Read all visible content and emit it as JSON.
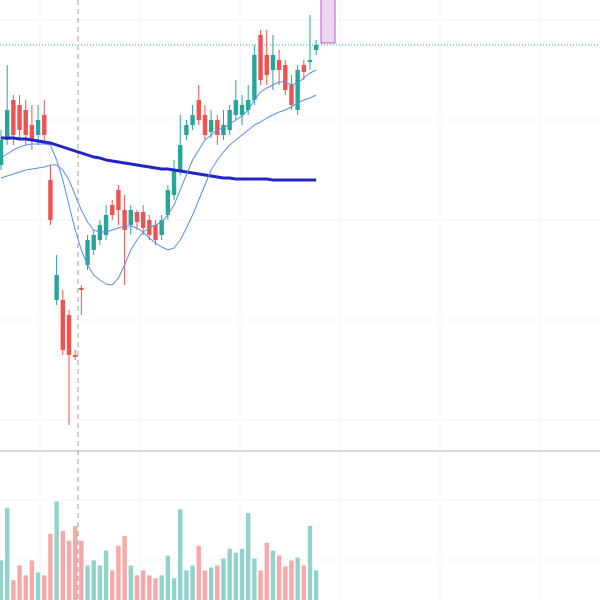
{
  "chart_data": {
    "type": "candlestick",
    "up_color": "#26a69a",
    "down_color": "#ef5350",
    "volume_up_color": "#92d2cc",
    "volume_down_color": "#f7a9a7",
    "ylim": [
      0,
      450
    ],
    "open": [
      285,
      310,
      350,
      345,
      340,
      325,
      315,
      335,
      270,
      150,
      150,
      135,
      95,
      162,
      185,
      200,
      210,
      215,
      245,
      260,
      240,
      225,
      238,
      238,
      230,
      225,
      215,
      235,
      255,
      280,
      315,
      325,
      350,
      335,
      318,
      330,
      315,
      320,
      335,
      335,
      340,
      350,
      415,
      395,
      380,
      390,
      385,
      365,
      340,
      385,
      388,
      400
    ],
    "high": [
      320,
      385,
      355,
      355,
      350,
      345,
      345,
      350,
      285,
      195,
      160,
      140,
      100,
      165,
      215,
      220,
      230,
      245,
      250,
      265,
      255,
      245,
      240,
      245,
      235,
      230,
      235,
      265,
      290,
      335,
      330,
      345,
      365,
      345,
      340,
      335,
      340,
      345,
      370,
      355,
      365,
      405,
      420,
      420,
      415,
      400,
      390,
      375,
      385,
      390,
      435,
      410
    ],
    "low": [
      280,
      305,
      305,
      310,
      305,
      300,
      305,
      310,
      225,
      145,
      95,
      25,
      90,
      135,
      180,
      195,
      205,
      210,
      230,
      225,
      165,
      215,
      220,
      215,
      210,
      205,
      210,
      230,
      250,
      275,
      310,
      320,
      325,
      310,
      312,
      305,
      310,
      315,
      330,
      325,
      335,
      345,
      365,
      365,
      360,
      365,
      355,
      340,
      335,
      370,
      380,
      395
    ],
    "close": [
      310,
      340,
      315,
      320,
      315,
      310,
      330,
      315,
      230,
      175,
      100,
      95,
      93,
      160,
      210,
      215,
      225,
      235,
      235,
      240,
      220,
      240,
      228,
      222,
      215,
      210,
      230,
      260,
      280,
      305,
      325,
      335,
      330,
      315,
      330,
      315,
      325,
      340,
      350,
      345,
      350,
      395,
      370,
      375,
      395,
      380,
      360,
      345,
      380,
      378,
      390,
      405
    ],
    "moving_averages": [
      {
        "color": "#2323c8",
        "width": 3,
        "values": [
          312,
          312,
          312,
          311,
          311,
          310,
          309,
          308,
          307,
          305,
          303,
          301,
          299,
          297,
          295,
          293,
          292,
          290,
          289,
          288,
          287,
          286,
          285,
          284,
          283,
          282,
          281,
          281,
          280,
          279,
          278,
          277,
          276,
          275,
          274,
          273,
          272,
          272,
          271,
          271,
          271,
          271,
          271,
          271,
          270,
          270,
          270,
          270,
          270,
          270,
          270,
          270
        ]
      },
      {
        "color": "#5b8ee6",
        "width": 1,
        "values": [
          292,
          296,
          300,
          303,
          305,
          306,
          306,
          306,
          305,
          290,
          270,
          245,
          220,
          200,
          185,
          175,
          170,
          166,
          165,
          172,
          185,
          200,
          210,
          218,
          222,
          225,
          228,
          235,
          245,
          260,
          275,
          290,
          300,
          310,
          315,
          320,
          322,
          326,
          330,
          334,
          340,
          350,
          358,
          362,
          365,
          368,
          368,
          365,
          367,
          372,
          377,
          380
        ]
      },
      {
        "color": "#5b8ee6",
        "width": 1,
        "values": [
          272,
          274,
          276,
          278,
          280,
          281,
          282,
          283,
          285,
          285,
          280,
          270,
          255,
          240,
          228,
          220,
          218,
          218,
          220,
          222,
          224,
          224,
          222,
          218,
          212,
          207,
          203,
          200,
          202,
          210,
          222,
          235,
          250,
          265,
          280,
          290,
          298,
          305,
          310,
          315,
          320,
          325,
          328,
          332,
          335,
          338,
          340,
          343,
          347,
          350,
          352,
          355
        ]
      }
    ],
    "volume": {
      "ylim": [
        0,
        150
      ],
      "values": [
        40,
        93,
        20,
        35,
        25,
        40,
        28,
        25,
        67,
        100,
        70,
        60,
        75,
        60,
        35,
        40,
        35,
        50,
        30,
        55,
        65,
        35,
        25,
        30,
        25,
        22,
        25,
        45,
        22,
        92,
        30,
        35,
        55,
        30,
        33,
        35,
        42,
        52,
        48,
        52,
        88,
        42,
        30,
        58,
        50,
        45,
        34,
        40,
        43,
        35,
        75,
        30
      ]
    }
  }
}
